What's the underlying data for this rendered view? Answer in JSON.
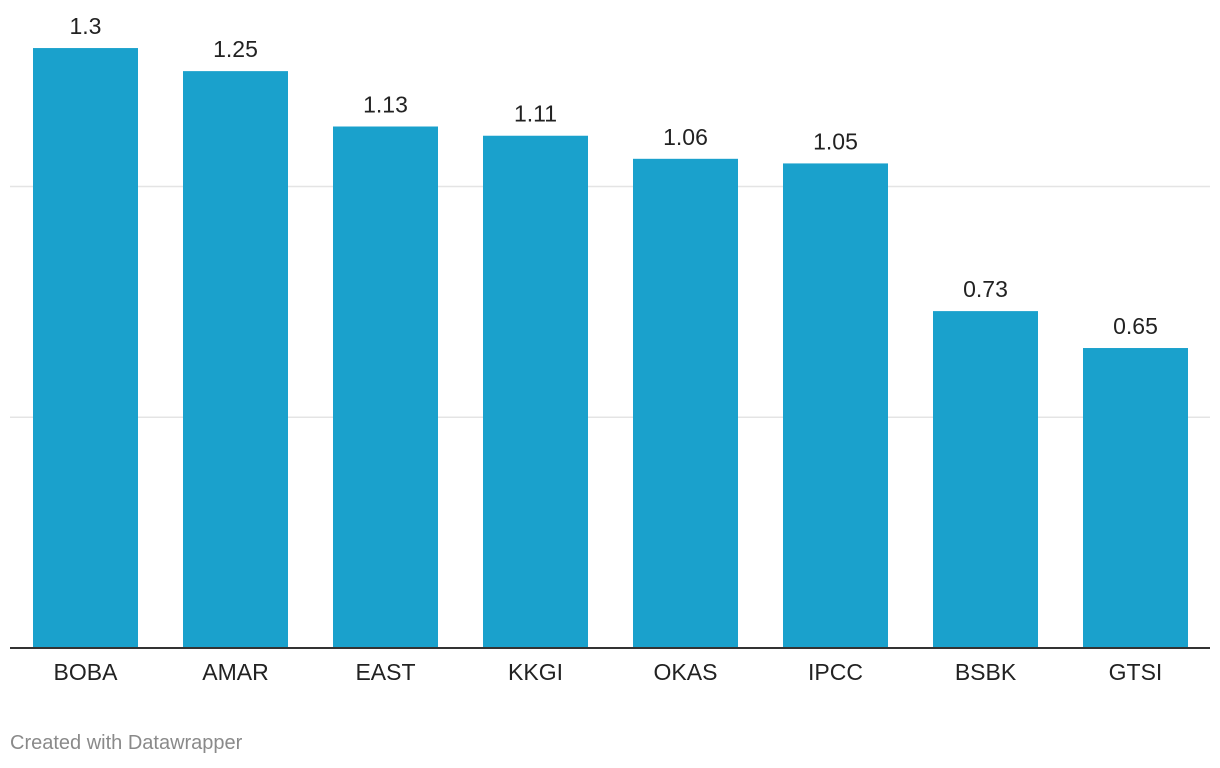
{
  "chart_data": {
    "type": "bar",
    "categories": [
      "BOBA",
      "AMAR",
      "EAST",
      "KKGI",
      "OKAS",
      "IPCC",
      "BSBK",
      "GTSI"
    ],
    "values": [
      1.3,
      1.25,
      1.13,
      1.11,
      1.06,
      1.05,
      0.73,
      0.65
    ],
    "value_labels": [
      "1.3",
      "1.25",
      "1.13",
      "1.11",
      "1.06",
      "1.05",
      "0.73",
      "0.65"
    ],
    "title": "",
    "xlabel": "",
    "ylabel": "",
    "ylim": [
      0,
      1.4
    ],
    "gridlines": [
      0.5,
      1.0
    ],
    "grid": true,
    "bar_color": "#1aa1cc"
  },
  "footer": {
    "credit": "Created with Datawrapper"
  }
}
